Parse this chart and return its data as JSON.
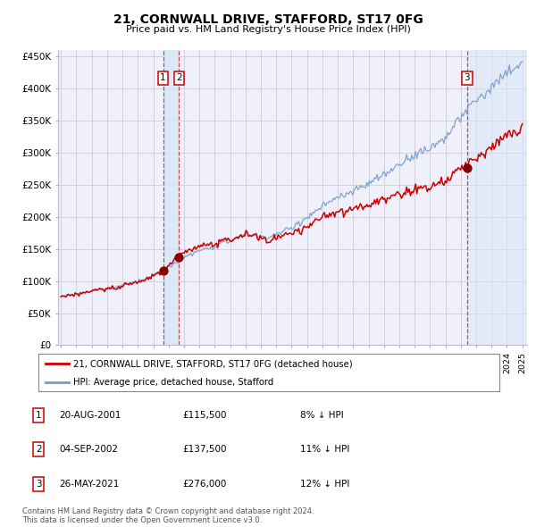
{
  "title": "21, CORNWALL DRIVE, STAFFORD, ST17 0FG",
  "subtitle": "Price paid vs. HM Land Registry's House Price Index (HPI)",
  "ylim": [
    0,
    460000
  ],
  "yticks": [
    0,
    50000,
    100000,
    150000,
    200000,
    250000,
    300000,
    350000,
    400000,
    450000
  ],
  "ytick_labels": [
    "£0",
    "£50K",
    "£100K",
    "£150K",
    "£200K",
    "£250K",
    "£300K",
    "£350K",
    "£400K",
    "£450K"
  ],
  "sale_color": "#cc0000",
  "hpi_color": "#7799cc",
  "marker_color": "#880000",
  "background_color": "#ffffff",
  "plot_bg_color": "#f0f0fa",
  "grid_color": "#ccccdd",
  "sale1_date_num": 2001.64,
  "sale1_price": 115500,
  "sale2_date_num": 2002.68,
  "sale2_price": 137500,
  "sale3_date_num": 2021.4,
  "sale3_price": 276000,
  "legend_line1": "21, CORNWALL DRIVE, STAFFORD, ST17 0FG (detached house)",
  "legend_line2": "HPI: Average price, detached house, Stafford",
  "table_rows": [
    [
      "1",
      "20-AUG-2001",
      "£115,500",
      "8% ↓ HPI"
    ],
    [
      "2",
      "04-SEP-2002",
      "£137,500",
      "11% ↓ HPI"
    ],
    [
      "3",
      "26-MAY-2021",
      "£276,000",
      "12% ↓ HPI"
    ]
  ],
  "footnote": "Contains HM Land Registry data © Crown copyright and database right 2024.\nThis data is licensed under the Open Government Licence v3.0.",
  "start_year": 1995,
  "end_year": 2025
}
